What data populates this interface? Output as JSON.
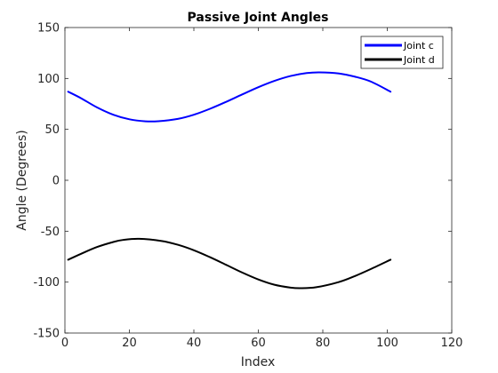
{
  "chart_data": {
    "type": "line",
    "title": "Passive Joint Angles",
    "xlabel": "Index",
    "ylabel": "Angle (Degrees)",
    "xlim": [
      0,
      120
    ],
    "ylim": [
      -150,
      150
    ],
    "xticks": [
      0,
      20,
      40,
      60,
      80,
      100,
      120
    ],
    "yticks": [
      -150,
      -100,
      -50,
      0,
      50,
      100,
      150
    ],
    "grid": false,
    "legend_position": "top-right",
    "series": [
      {
        "name": "Joint c",
        "color": "#0000ff",
        "x": [
          1,
          5,
          10,
          15,
          20,
          25,
          29,
          35,
          40,
          45,
          50,
          55,
          60,
          65,
          70,
          75,
          79,
          85,
          90,
          95,
          101
        ],
        "y": [
          87,
          80.6,
          71.5,
          64.4,
          59.9,
          57.9,
          58,
          60.3,
          64.4,
          70.2,
          77,
          84.3,
          91.4,
          97.6,
          102.4,
          105.3,
          106,
          104.9,
          101.7,
          96.8,
          87
        ]
      },
      {
        "name": "Joint d",
        "color": "#000000",
        "x": [
          1,
          5,
          10,
          15,
          18,
          23,
          30,
          35,
          40,
          45,
          50,
          55,
          60,
          65,
          70,
          73,
          78,
          85,
          90,
          95,
          101
        ],
        "y": [
          -78,
          -72.2,
          -65.5,
          -60.6,
          -58.6,
          -57.5,
          -59.6,
          -63.3,
          -68.7,
          -75.5,
          -83,
          -90.6,
          -97.4,
          -102.6,
          -105.4,
          -106,
          -105,
          -99.9,
          -94,
          -87,
          -78
        ]
      }
    ]
  }
}
